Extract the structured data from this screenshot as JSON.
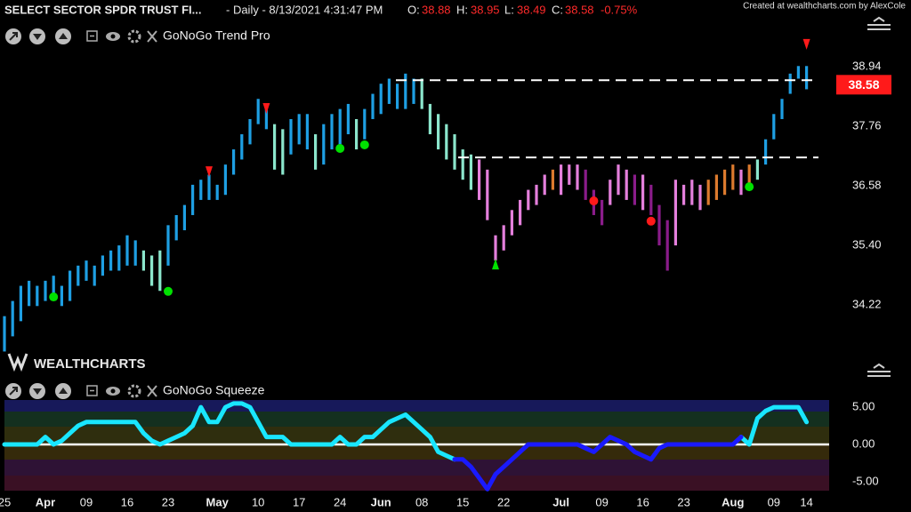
{
  "header": {
    "symbol": "SELECT SECTOR SPDR TRUST FI...",
    "interval": "- Daily - 8/13/2021 4:31:47 PM",
    "open_label": "O:",
    "open": 38.88,
    "high_label": "H:",
    "high": 38.95,
    "low_label": "L:",
    "low": 38.49,
    "close_label": "C:",
    "close": 38.58,
    "change": "-0.75%",
    "credit": "Created at wealthcharts.com by AlexCole",
    "watermark": "WEALTHCHARTS"
  },
  "chart_data": [
    {
      "type": "range-bar",
      "title": "GoNoGo Trend Pro",
      "high": [
        34.0,
        34.3,
        34.6,
        34.7,
        34.6,
        34.7,
        34.8,
        34.6,
        34.9,
        35.0,
        35.1,
        35.0,
        35.2,
        35.3,
        35.4,
        35.6,
        35.5,
        35.3,
        35.2,
        35.3,
        35.8,
        36.0,
        36.2,
        36.6,
        36.7,
        36.8,
        36.6,
        37.0,
        37.3,
        37.6,
        37.9,
        38.3,
        38.2,
        37.8,
        37.7,
        37.9,
        38.0,
        38.0,
        37.6,
        37.8,
        38.0,
        38.1,
        38.2,
        37.9,
        38.1,
        38.4,
        38.6,
        38.7,
        38.6,
        38.8,
        38.7,
        38.7,
        38.2,
        38.0,
        37.8,
        37.6,
        37.3,
        37.2,
        37.1,
        36.9,
        35.6,
        35.8,
        36.1,
        36.3,
        36.5,
        36.6,
        36.8,
        36.9,
        37.0,
        37.0,
        37.0,
        36.9,
        36.5,
        36.3,
        36.7,
        37.0,
        36.9,
        36.8,
        36.8,
        36.6,
        36.2,
        35.9,
        36.7,
        36.6,
        36.7,
        36.6,
        36.7,
        36.8,
        36.9,
        37.0,
        36.9,
        37.0,
        37.1,
        37.5,
        38.0,
        38.3,
        38.8,
        38.95,
        38.95
      ],
      "low": [
        33.3,
        33.6,
        33.9,
        34.2,
        34.2,
        34.3,
        34.4,
        34.2,
        34.3,
        34.6,
        34.7,
        34.6,
        34.8,
        34.9,
        34.9,
        35.0,
        35.0,
        34.9,
        34.6,
        34.5,
        35.0,
        35.5,
        35.7,
        36.0,
        36.3,
        36.3,
        36.3,
        36.4,
        36.8,
        37.1,
        37.4,
        37.8,
        37.7,
        36.9,
        36.8,
        37.2,
        37.4,
        37.3,
        36.9,
        37.0,
        37.3,
        37.4,
        37.6,
        37.3,
        37.5,
        37.9,
        38.0,
        38.2,
        38.1,
        38.1,
        38.2,
        38.1,
        37.6,
        37.3,
        37.1,
        36.9,
        36.7,
        36.5,
        36.3,
        35.9,
        35.1,
        35.3,
        35.6,
        35.8,
        36.1,
        36.2,
        36.4,
        36.5,
        36.4,
        36.6,
        36.5,
        36.3,
        36.0,
        35.8,
        36.2,
        36.4,
        36.3,
        36.2,
        36.1,
        36.0,
        35.4,
        34.9,
        35.4,
        36.2,
        36.2,
        36.1,
        36.2,
        36.3,
        36.4,
        36.5,
        36.4,
        36.5,
        36.7,
        37.0,
        37.5,
        37.9,
        38.4,
        38.7,
        38.49
      ],
      "bar_colors": [
        "#1e9fe3",
        "#1e9fe3",
        "#1e9fe3",
        "#1e9fe3",
        "#1e9fe3",
        "#1e9fe3",
        "#1e9fe3",
        "#1e9fe3",
        "#1e9fe3",
        "#1e9fe3",
        "#1e9fe3",
        "#1e9fe3",
        "#1e9fe3",
        "#1e9fe3",
        "#1e9fe3",
        "#1e9fe3",
        "#1e9fe3",
        "#8be6cc",
        "#8be6cc",
        "#8be6cc",
        "#1e9fe3",
        "#1e9fe3",
        "#1e9fe3",
        "#1e9fe3",
        "#1e9fe3",
        "#1e9fe3",
        "#1e9fe3",
        "#1e9fe3",
        "#1e9fe3",
        "#1e9fe3",
        "#1e9fe3",
        "#1e9fe3",
        "#1e9fe3",
        "#8be6cc",
        "#8be6cc",
        "#1e9fe3",
        "#1e9fe3",
        "#1e9fe3",
        "#8be6cc",
        "#1e9fe3",
        "#1e9fe3",
        "#1e9fe3",
        "#1e9fe3",
        "#8be6cc",
        "#1e9fe3",
        "#1e9fe3",
        "#1e9fe3",
        "#1e9fe3",
        "#1e9fe3",
        "#1e9fe3",
        "#1e9fe3",
        "#8be6cc",
        "#8be6cc",
        "#8be6cc",
        "#8be6cc",
        "#8be6cc",
        "#8be6cc",
        "#8be6cc",
        "#e47fdc",
        "#e47fdc",
        "#e47fdc",
        "#e47fdc",
        "#e47fdc",
        "#e47fdc",
        "#e47fdc",
        "#e47fdc",
        "#e47fdc",
        "#dc7a2e",
        "#e47fdc",
        "#e47fdc",
        "#e47fdc",
        "#8a1c8a",
        "#8a1c8a",
        "#8a1c8a",
        "#e47fdc",
        "#e47fdc",
        "#e47fdc",
        "#8a1c8a",
        "#e47fdc",
        "#8a1c8a",
        "#8a1c8a",
        "#8a1c8a",
        "#e47fdc",
        "#e47fdc",
        "#e47fdc",
        "#e47fdc",
        "#dc7a2e",
        "#dc7a2e",
        "#dc7a2e",
        "#dc7a2e",
        "#e47fdc",
        "#dc7a2e",
        "#8be6cc",
        "#1e9fe3",
        "#1e9fe3",
        "#1e9fe3",
        "#1e9fe3",
        "#1e9fe3",
        "#1e9fe3"
      ],
      "go_dots": {
        "6": 34.38,
        "20": 34.49,
        "41": 37.32,
        "44": 37.39,
        "91": 36.56
      },
      "nogo_dots": {
        "72": 36.28,
        "79": 35.88
      },
      "go_triangles": {
        "60": 35.03
      },
      "nogo_triangles": {
        "25": 36.86,
        "32": 38.11,
        "98": 39.38
      },
      "marker_colors": {
        "go": "#00e000",
        "nogo": "#ff1a1a"
      },
      "levels": [
        38.67,
        37.14
      ],
      "last_price": 38.58,
      "ylim": [
        32.78,
        39.87
      ],
      "yticks": [
        38.94,
        37.76,
        36.58,
        {
          "value": 35.4,
          "label": "35.40"
        },
        34.22
      ]
    },
    {
      "type": "line",
      "title": "GoNoGo Squeeze",
      "categories": [
        "25",
        null,
        null,
        null,
        null,
        "Apr",
        null,
        null,
        null,
        null,
        "09",
        null,
        null,
        null,
        null,
        "16",
        null,
        null,
        null,
        null,
        "23",
        null,
        null,
        null,
        null,
        null,
        "May",
        null,
        null,
        null,
        null,
        "10",
        null,
        null,
        null,
        null,
        "17",
        null,
        null,
        null,
        null,
        "24",
        null,
        null,
        null,
        null,
        "Jun",
        null,
        null,
        null,
        null,
        "08",
        null,
        null,
        null,
        null,
        "15",
        null,
        null,
        null,
        null,
        "22",
        null,
        null,
        null,
        null,
        null,
        null,
        "Jul",
        null,
        null,
        null,
        null,
        "09",
        null,
        null,
        null,
        null,
        "16",
        null,
        null,
        null,
        null,
        "23",
        null,
        null,
        null,
        null,
        null,
        "Aug",
        null,
        null,
        null,
        null,
        "09",
        null,
        null,
        null,
        "14"
      ],
      "series": [
        {
          "color": "#19e6ff",
          "values": [
            0,
            0,
            0,
            0,
            0,
            1,
            0,
            0.5,
            1.5,
            2.5,
            3,
            3,
            3,
            3,
            3,
            3,
            3,
            1.5,
            0.5,
            0,
            0.5,
            1,
            1.5,
            2.5,
            5,
            3,
            3,
            5,
            5.5,
            5.5,
            5,
            3,
            1,
            1,
            1,
            0,
            0,
            0,
            0,
            0,
            0,
            1,
            0,
            0,
            1,
            1,
            2,
            3,
            3.5,
            4,
            3,
            2,
            1,
            -1,
            -1.5,
            -2,
            null,
            null,
            null,
            null,
            null,
            null,
            null,
            null,
            null,
            null,
            null,
            null,
            null,
            null,
            null,
            null,
            null,
            null,
            null,
            null,
            null,
            null,
            null,
            null,
            null,
            null,
            null,
            null,
            null,
            null,
            null,
            null,
            null,
            null,
            1,
            0,
            3.5,
            4.5,
            5,
            5,
            5,
            5,
            3
          ]
        },
        {
          "color": "#1a1aff",
          "values": [
            null,
            null,
            null,
            null,
            null,
            null,
            null,
            null,
            null,
            null,
            null,
            null,
            null,
            null,
            null,
            null,
            null,
            null,
            null,
            null,
            null,
            null,
            null,
            null,
            null,
            null,
            null,
            null,
            null,
            null,
            null,
            null,
            null,
            null,
            null,
            null,
            null,
            null,
            null,
            null,
            null,
            null,
            null,
            null,
            null,
            null,
            null,
            null,
            null,
            null,
            null,
            null,
            null,
            null,
            null,
            -2,
            -2,
            -3,
            -4.5,
            -6,
            -4,
            -3,
            -2,
            -1,
            0,
            0,
            0,
            0,
            0,
            0,
            0,
            -0.5,
            -1,
            0,
            1,
            0.5,
            0,
            -1,
            -1.5,
            -2,
            -0.5,
            0,
            0,
            0,
            0,
            0,
            0,
            0,
            0,
            0,
            1,
            null,
            null,
            null,
            null,
            null,
            null,
            null,
            null
          ]
        }
      ],
      "ylim": [
        -6.2,
        6.2
      ],
      "yticks": [
        {
          "value": 5,
          "label": "5.00"
        },
        {
          "value": 0,
          "label": "0.00"
        },
        {
          "value": -5,
          "label": "-5.00"
        }
      ]
    }
  ]
}
